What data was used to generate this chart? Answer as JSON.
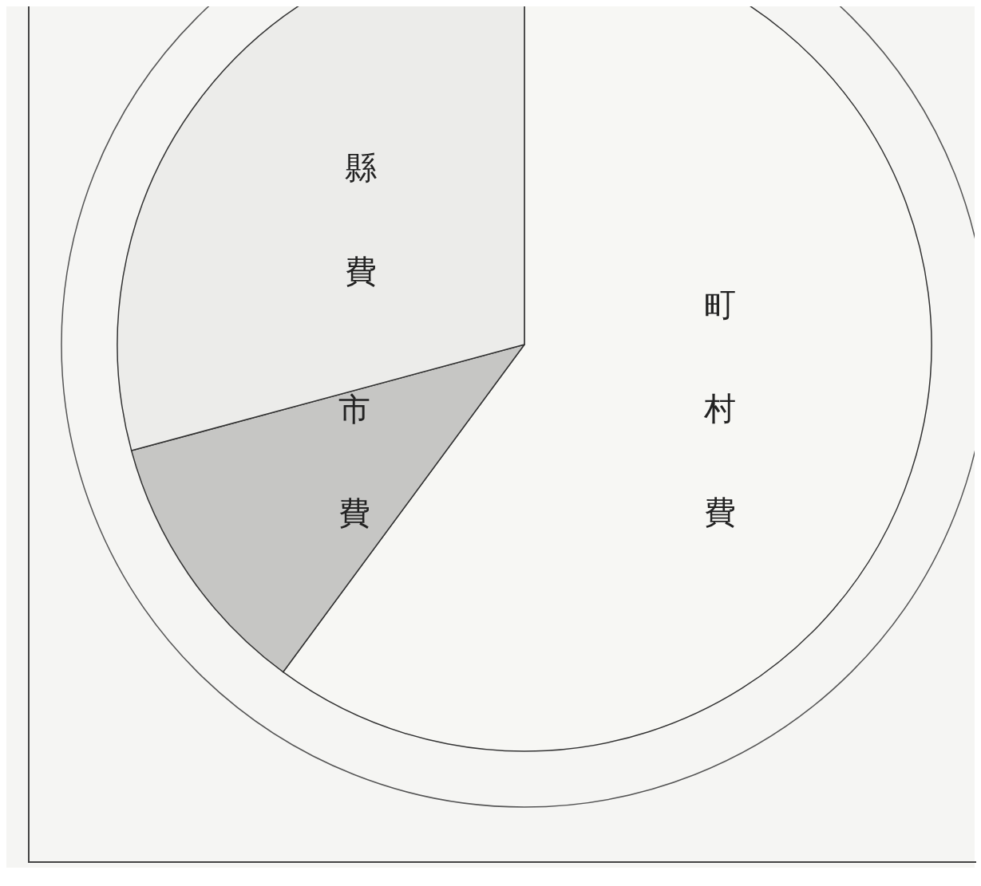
{
  "chart_data": {
    "type": "pie",
    "categories": [
      "町村費",
      "市費",
      "縣費"
    ],
    "values": [
      60.1,
      10.7,
      29.2
    ],
    "colors": [
      "#f7f7f4",
      "#c6c6c4",
      "#ececea"
    ]
  }
}
